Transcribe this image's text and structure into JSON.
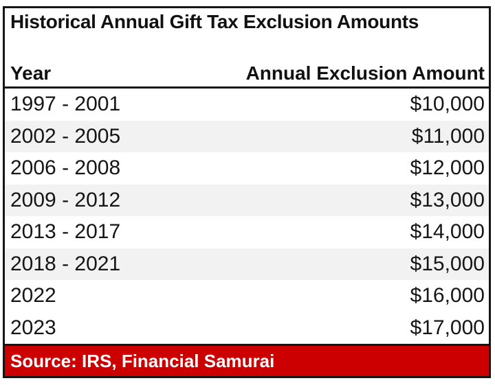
{
  "chart_data": {
    "type": "table",
    "title": "Historical Annual Gift Tax Exclusion Amounts",
    "columns": [
      "Year",
      "Annual Exclusion Amount"
    ],
    "rows": [
      [
        "1997 - 2001",
        "$10,000"
      ],
      [
        "2002 - 2005",
        "$11,000"
      ],
      [
        "2006 - 2008",
        "$12,000"
      ],
      [
        "2009 - 2012",
        "$13,000"
      ],
      [
        "2013 - 2017",
        "$14,000"
      ],
      [
        "2018 - 2021",
        "$15,000"
      ],
      [
        "2022",
        "$16,000"
      ],
      [
        "2023",
        "$17,000"
      ]
    ],
    "values_numeric": [
      10000,
      11000,
      12000,
      13000,
      14000,
      15000,
      16000,
      17000
    ],
    "source": "Source: IRS, Financial Samurai",
    "striped_rows": [
      1,
      3,
      5
    ],
    "colors": {
      "stripe_gray": "#f2f2f2",
      "source_bar_red": "#cc0000",
      "border_black": "#151515",
      "source_text_white": "#ffffff"
    }
  }
}
